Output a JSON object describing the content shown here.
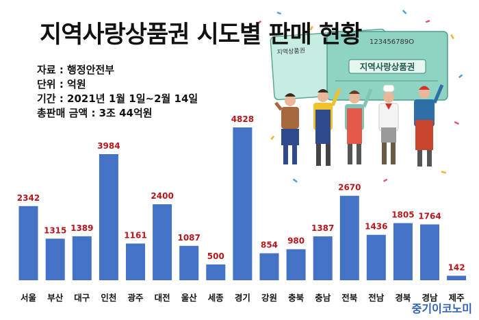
{
  "chart_data": {
    "type": "bar",
    "title": "지역사랑상품권 시도별 판매 현황",
    "categories": [
      "서울",
      "부산",
      "대구",
      "인천",
      "광주",
      "대전",
      "울산",
      "세종",
      "경기",
      "강원",
      "충북",
      "충남",
      "전북",
      "전남",
      "경북",
      "경남",
      "제주"
    ],
    "values": [
      2342,
      1315,
      1389,
      3984,
      1161,
      2400,
      1087,
      500,
      4828,
      854,
      980,
      1387,
      2670,
      1436,
      1805,
      1764,
      142
    ],
    "xlabel": "",
    "ylabel": "",
    "ylim": [
      0,
      4828
    ],
    "grid": false,
    "legend": "none",
    "bar_color": "#4472c4",
    "value_label_color": "#b5171b"
  },
  "info": {
    "source": "자료 : 행정안전부",
    "unit": "단위 : 억원",
    "period": "기간 : 2021년 1월 1일~2월 14일",
    "total": "총판매 금액  : 3조 44억원"
  },
  "illustration": {
    "voucher_label": "지역사랑상품권",
    "voucher_small_label": "지역상품권",
    "serial": "123456789O"
  },
  "brand": "중기이코노미",
  "colors": {
    "title": "#111111",
    "voucher_front": "#8fd4c3",
    "voucher_back": "#c7ece2"
  }
}
